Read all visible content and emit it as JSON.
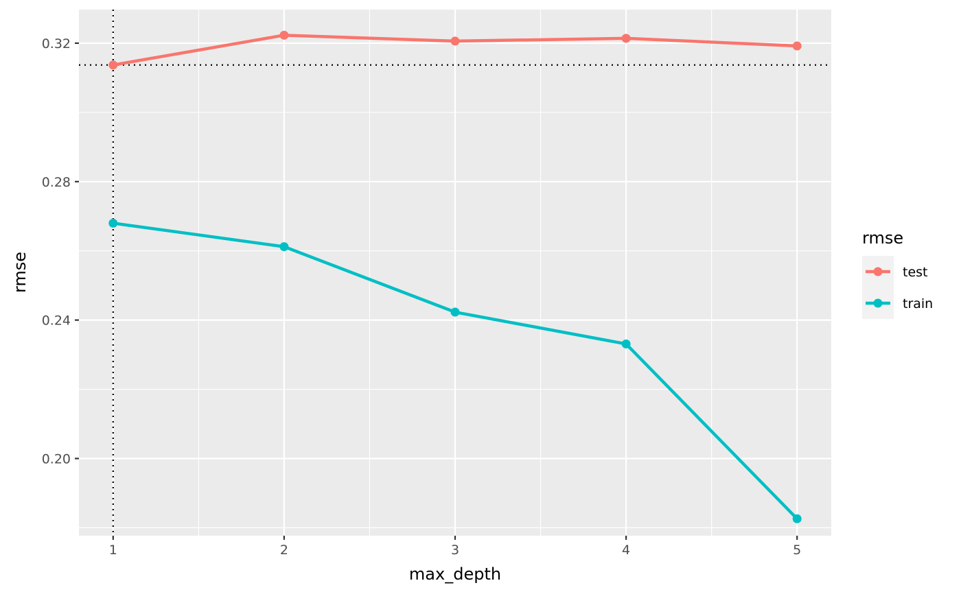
{
  "chart_data": {
    "type": "line",
    "xlabel": "max_depth",
    "ylabel": "rmse",
    "x": [
      1,
      2,
      3,
      4,
      5
    ],
    "xlim": [
      0.8,
      5.2
    ],
    "ylim": [
      0.1777,
      0.3297
    ],
    "x_ticks": [
      "1",
      "2",
      "3",
      "4",
      "5"
    ],
    "y_ticks": [
      "0.20",
      "0.24",
      "0.28",
      "0.32"
    ],
    "y_tick_values": [
      0.2,
      0.24,
      0.28,
      0.32
    ],
    "y_minor_values": [
      0.18,
      0.22,
      0.26,
      0.3
    ],
    "x_minor_values": [
      1.5,
      2.5,
      3.5,
      4.5
    ],
    "series": [
      {
        "name": "test",
        "color": "#F8766D",
        "values": [
          0.3137,
          0.3223,
          0.3206,
          0.3214,
          0.3192
        ]
      },
      {
        "name": "train",
        "color": "#00BFC4",
        "values": [
          0.268,
          0.2612,
          0.2423,
          0.2331,
          0.1826
        ]
      }
    ],
    "reference_lines": {
      "vline_x": 1,
      "hline_y": 0.3137,
      "style": "dotted"
    },
    "grid": true,
    "panel_background": "#EBEBEB",
    "grid_color": "#FFFFFF",
    "legend": {
      "title": "rmse",
      "position": "right",
      "items": [
        "test",
        "train"
      ]
    }
  }
}
